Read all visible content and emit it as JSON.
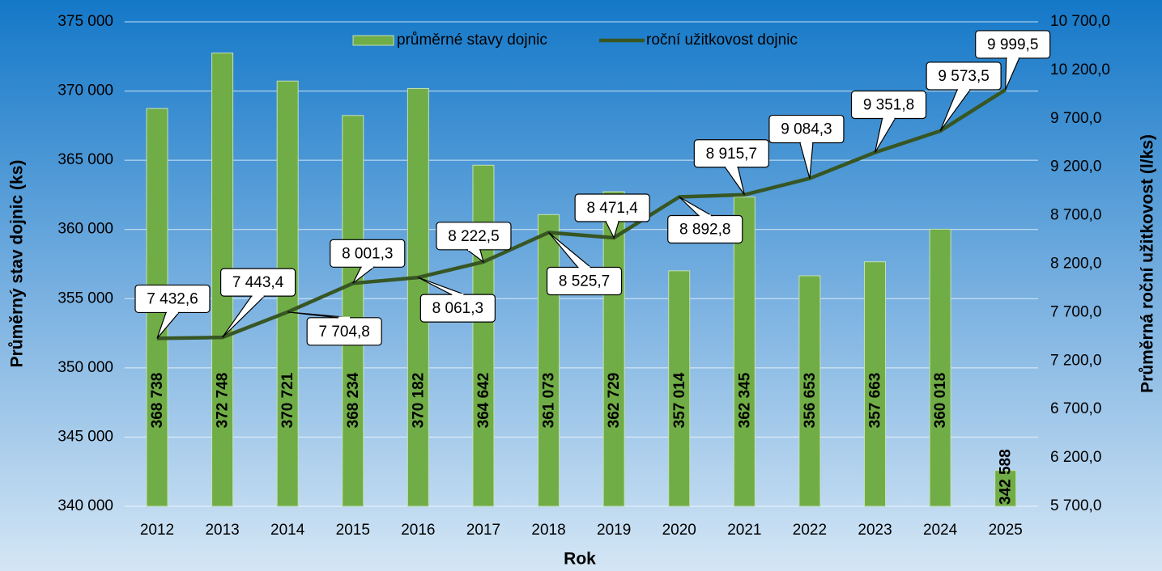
{
  "chart_data": {
    "type": "bar",
    "x_label": "Rok",
    "y_label": "Průměrný stav dojnic (ks)",
    "y2_label": "Průměrná roční užitkovost (l/ks)",
    "legend": "top",
    "grid": true,
    "categories": [
      "2012",
      "2013",
      "2014",
      "2015",
      "2016",
      "2017",
      "2018",
      "2019",
      "2020",
      "2021",
      "2022",
      "2023",
      "2024",
      "2025"
    ],
    "series": [
      {
        "name": "průměrné stavy dojnic",
        "type": "bar",
        "color": "#70ad47",
        "values": [
          368738,
          372748,
          370721,
          368234,
          370182,
          364642,
          361073,
          362729,
          357014,
          362345,
          356653,
          357663,
          360018,
          342588
        ],
        "value_labels": [
          "368 738",
          "372 748",
          "370 721",
          "368 234",
          "370 182",
          "364 642",
          "361 073",
          "362 729",
          "357 014",
          "362 345",
          "356 653",
          "357 663",
          "360 018",
          "342 588"
        ]
      },
      {
        "name": "roční užitkovost dojnic",
        "type": "line",
        "axis": "y2",
        "color": "#375623",
        "values": [
          7432.6,
          7443.4,
          7704.8,
          8001.3,
          8061.3,
          8222.5,
          8525.7,
          8471.4,
          8892.8,
          8915.7,
          9084.3,
          9351.8,
          9573.5,
          9999.5
        ],
        "value_labels": [
          "7 432,6",
          "7 443,4",
          "7 704,8",
          "8 001,3",
          "8 061,3",
          "8 222,5",
          "8 525,7",
          "8 471,4",
          "8 892,8",
          "8 915,7",
          "9 084,3",
          "9 351,8",
          "9 573,5",
          "9 999,5"
        ]
      }
    ],
    "ylim": [
      340000,
      375000
    ],
    "yticks": [
      {
        "value": 340000,
        "label": "340 000"
      },
      {
        "value": 345000,
        "label": "345 000"
      },
      {
        "value": 350000,
        "label": "350 000"
      },
      {
        "value": 355000,
        "label": "355 000"
      },
      {
        "value": 360000,
        "label": "360 000"
      },
      {
        "value": 365000,
        "label": "365 000"
      },
      {
        "value": 370000,
        "label": "370 000"
      },
      {
        "value": 375000,
        "label": "375 000"
      }
    ],
    "y2lim": [
      5700,
      10700
    ],
    "y2ticks": [
      {
        "value": 5700,
        "label": "5 700,0"
      },
      {
        "value": 6200,
        "label": "6 200,0"
      },
      {
        "value": 6700,
        "label": "6 700,0"
      },
      {
        "value": 7200,
        "label": "7 200,0"
      },
      {
        "value": 7700,
        "label": "7 700,0"
      },
      {
        "value": 8200,
        "label": "8 200,0"
      },
      {
        "value": 8700,
        "label": "8 700,0"
      },
      {
        "value": 9200,
        "label": "9 200,0"
      },
      {
        "value": 9700,
        "label": "9 700,0"
      },
      {
        "value": 10200,
        "label": "10 200,0"
      },
      {
        "value": 10700,
        "label": "10 700,0"
      }
    ]
  }
}
